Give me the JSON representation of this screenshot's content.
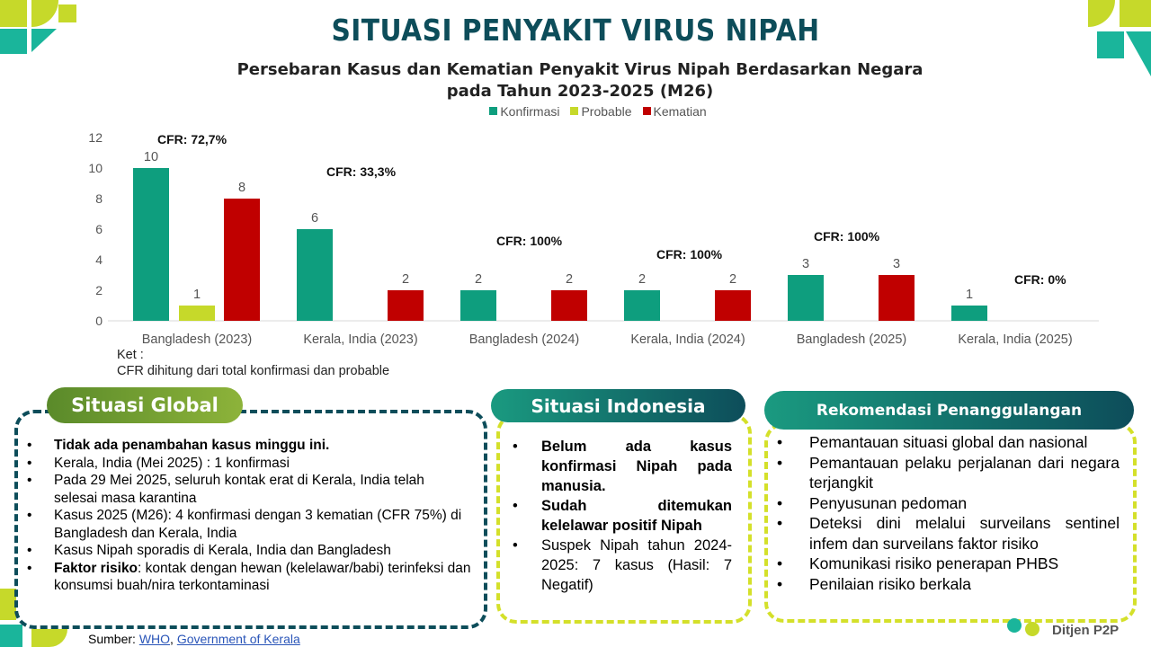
{
  "title": "SITUASI PENYAKIT VIRUS NIPAH",
  "chart_data": {
    "type": "bar",
    "title": "Persebaran Kasus dan Kematian Penyakit Virus Nipah Berdasarkan Negara",
    "subtitle": "pada Tahun 2023-2025 (M26)",
    "categories": [
      "Bangladesh (2023)",
      "Kerala, India (2023)",
      "Bangladesh (2024)",
      "Kerala, India (2024)",
      "Bangladesh (2025)",
      "Kerala, India (2025)"
    ],
    "series": [
      {
        "name": "Konfirmasi",
        "color": "#0e9e7e",
        "values": [
          10,
          6,
          2,
          2,
          3,
          1
        ]
      },
      {
        "name": "Probable",
        "color": "#c6d92a",
        "values": [
          1,
          0,
          0,
          0,
          0,
          0
        ]
      },
      {
        "name": "Kematian",
        "color": "#c00000",
        "values": [
          8,
          2,
          2,
          2,
          3,
          0
        ]
      }
    ],
    "annotations": [
      "CFR: 72,7%",
      "CFR: 33,3%",
      "CFR: 100%",
      "CFR: 100%",
      "CFR: 100%",
      "CFR: 0%"
    ],
    "yticks": [
      0,
      2,
      4,
      6,
      8,
      10,
      12
    ],
    "ylim": [
      0,
      12
    ],
    "legend": "top",
    "grid": false
  },
  "note": {
    "label": "Ket :",
    "text": "CFR dihitung dari total konfirmasi dan probable"
  },
  "global": {
    "heading": "Situasi Global",
    "items": [
      {
        "bold": "Tidak ada penambahan kasus minggu ini.",
        "text": ""
      },
      {
        "bold": "",
        "text": "Kerala, India (Mei 2025) : 1 konfirmasi"
      },
      {
        "bold": "",
        "text": "Pada 29 Mei 2025, seluruh kontak erat di Kerala, India telah selesai masa karantina"
      },
      {
        "bold": "",
        "text": "Kasus 2025 (M26): 4 konfirmasi dengan 3  kematian (CFR 75%) di Bangladesh dan Kerala, India"
      },
      {
        "bold": "",
        "text": "Kasus Nipah sporadis di Kerala, India dan Bangladesh"
      },
      {
        "bold": "Faktor risiko",
        "text": ": kontak dengan hewan (kelelawar/babi) terinfeksi dan konsumsi buah/nira terkontaminasi"
      }
    ]
  },
  "indonesia": {
    "heading": "Situasi Indonesia",
    "items": [
      {
        "bold": "Belum ada kasus konfirmasi Nipah pada manusia.",
        "text": ""
      },
      {
        "bold": "Sudah ditemukan kelelawar positif Nipah",
        "text": ""
      },
      {
        "bold": "",
        "text": "Suspek Nipah tahun 2024-2025: 7 kasus  (Hasil: 7 Negatif)"
      }
    ]
  },
  "rekomendasi": {
    "heading": "Rekomendasi Penanggulangan",
    "items": [
      "Pemantauan situasi global dan nasional",
      "Pemantauan pelaku perjalanan dari negara terjangkit",
      "Penyusunan pedoman",
      "Deteksi dini melalui surveilans sentinel infem dan surveilans faktor risiko",
      "Komunikasi risiko penerapan PHBS",
      "Penilaian risiko berkala"
    ]
  },
  "source": {
    "label": "Sumber:",
    "links": [
      "WHO",
      "Government of Kerala"
    ],
    "sep": ", "
  },
  "logo": {
    "text": "Ditjen P2P"
  }
}
